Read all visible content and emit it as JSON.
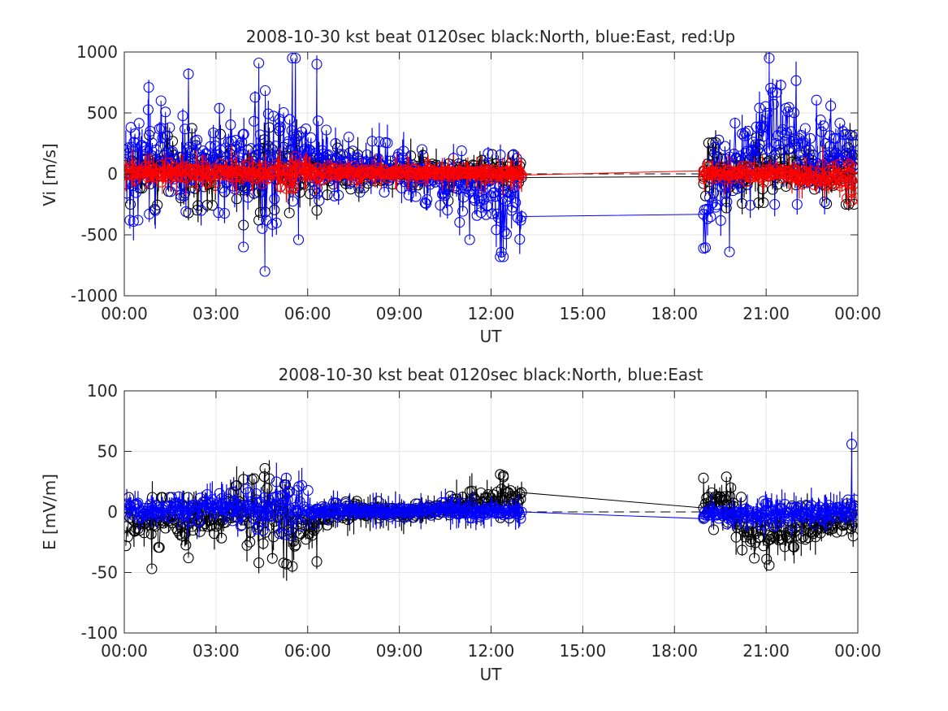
{
  "chart_data": [
    {
      "type": "line",
      "title": "2008-10-30 kst beat 0120sec black:North, blue:East, red:Up",
      "xlabel": "UT",
      "ylabel": "Vi [m/s]",
      "xlim": [
        0,
        24
      ],
      "ylim": [
        -1000,
        1000
      ],
      "grid": true,
      "xticks": [
        0,
        3,
        6,
        9,
        12,
        15,
        18,
        21,
        24
      ],
      "xtick_labels": [
        "00:00",
        "03:00",
        "06:00",
        "09:00",
        "12:00",
        "15:00",
        "18:00",
        "21:00",
        "00:00"
      ],
      "yticks": [
        -1000,
        -500,
        0,
        500,
        1000
      ],
      "ytick_labels": [
        "-1000",
        "-500",
        "0",
        "500",
        "1000"
      ],
      "zero_line": "dashed",
      "data_gap": [
        13.0,
        18.95
      ],
      "series": [
        {
          "color": "#000000",
          "marker": "circle",
          "envelope": [
            [
              0.5,
              -220,
              300
            ],
            [
              1.5,
              -280,
              360
            ],
            [
              2.5,
              -300,
              380
            ],
            [
              3.5,
              -250,
              340
            ],
            [
              4.5,
              -320,
              400
            ],
            [
              5.5,
              -260,
              320
            ],
            [
              6.5,
              -180,
              260
            ],
            [
              7.5,
              -120,
              160
            ],
            [
              8.5,
              -100,
              140
            ],
            [
              9.5,
              -90,
              150
            ],
            [
              10.5,
              -110,
              160
            ],
            [
              11.5,
              -120,
              170
            ],
            [
              12.5,
              -110,
              150
            ],
            [
              19.5,
              -250,
              260
            ],
            [
              20.5,
              -240,
              300
            ],
            [
              21.5,
              -230,
              280
            ],
            [
              22.5,
              -240,
              300
            ],
            [
              23.5,
              -250,
              320
            ]
          ],
          "x": [
            0.2,
            1.0,
            2.1,
            3.9,
            4.4,
            5.4,
            6.3,
            10.6,
            12.4,
            13.0,
            18.95,
            19.7,
            23.7
          ],
          "y": [
            -250,
            -290,
            -320,
            -420,
            -380,
            -320,
            -300,
            -220,
            -130,
            -30,
            -80,
            -280,
            -250
          ]
        },
        {
          "color": "#0000ff",
          "marker": "circle",
          "envelope": [
            [
              0.5,
              -380,
              550
            ],
            [
              1.0,
              -300,
              700
            ],
            [
              1.5,
              -320,
              600
            ],
            [
              2.5,
              -300,
              520
            ],
            [
              3.5,
              -330,
              550
            ],
            [
              4.5,
              -450,
              650
            ],
            [
              5.5,
              -350,
              950
            ],
            [
              6.5,
              -200,
              420
            ],
            [
              7.5,
              -150,
              280
            ],
            [
              8.5,
              -150,
              260
            ],
            [
              9.5,
              -180,
              200
            ],
            [
              10.5,
              -350,
              200
            ],
            [
              11.5,
              -450,
              180
            ],
            [
              12.5,
              -680,
              150
            ],
            [
              19.5,
              -600,
              420
            ],
            [
              20.5,
              -250,
              850
            ],
            [
              21.5,
              -250,
              900
            ],
            [
              22.5,
              -250,
              620
            ],
            [
              23.5,
              -200,
              520
            ]
          ],
          "x": [
            0.3,
            0.8,
            1.2,
            2.1,
            3.9,
            4.4,
            4.6,
            5.5,
            5.6,
            5.7,
            6.3,
            11.3,
            12.3,
            12.4,
            13.0,
            18.95,
            19.8,
            21.1
          ],
          "y": [
            -390,
            710,
            600,
            820,
            -600,
            910,
            -800,
            950,
            950,
            -540,
            900,
            -540,
            -680,
            -680,
            -350,
            -610,
            -640,
            950
          ]
        },
        {
          "color": "#ff0000",
          "marker": "circle",
          "envelope": [
            [
              0.5,
              -60,
              80
            ],
            [
              1.5,
              -70,
              90
            ],
            [
              2.5,
              -70,
              90
            ],
            [
              3.5,
              -70,
              80
            ],
            [
              4.5,
              -80,
              90
            ],
            [
              5.5,
              -120,
              140
            ],
            [
              6.5,
              -50,
              70
            ],
            [
              8.5,
              -40,
              60
            ],
            [
              10.5,
              -40,
              50
            ],
            [
              12.5,
              -40,
              50
            ],
            [
              19.5,
              -60,
              60
            ],
            [
              21.5,
              -70,
              70
            ],
            [
              23.5,
              -200,
              80
            ]
          ],
          "x": [
            5.3,
            5.6,
            13.0,
            18.95,
            23.8
          ],
          "y": [
            -120,
            140,
            -10,
            -40,
            -220
          ]
        }
      ]
    },
    {
      "type": "line",
      "title": "2008-10-30 kst beat 0120sec black:North, blue:East",
      "xlabel": "UT",
      "ylabel": "E [mV/m]",
      "xlim": [
        0,
        24
      ],
      "ylim": [
        -100,
        100
      ],
      "grid": true,
      "xticks": [
        0,
        3,
        6,
        9,
        12,
        15,
        18,
        21,
        24
      ],
      "xtick_labels": [
        "00:00",
        "03:00",
        "06:00",
        "09:00",
        "12:00",
        "15:00",
        "18:00",
        "21:00",
        "00:00"
      ],
      "yticks": [
        -100,
        -50,
        0,
        50,
        100
      ],
      "ytick_labels": [
        "-100",
        "-50",
        "0",
        "50",
        "100"
      ],
      "zero_line": "dashed",
      "data_gap": [
        13.0,
        18.95
      ],
      "series": [
        {
          "color": "#000000",
          "marker": "circle",
          "envelope": [
            [
              0.5,
              -28,
              12
            ],
            [
              1.5,
              -30,
              12
            ],
            [
              2.5,
              -25,
              12
            ],
            [
              3.5,
              -20,
              20
            ],
            [
              4.5,
              -35,
              30
            ],
            [
              5.5,
              -45,
              20
            ],
            [
              6.5,
              -18,
              10
            ],
            [
              7.5,
              -10,
              12
            ],
            [
              8.5,
              -8,
              8
            ],
            [
              9.5,
              -8,
              8
            ],
            [
              10.5,
              -6,
              12
            ],
            [
              11.5,
              -4,
              18
            ],
            [
              12.5,
              -5,
              30
            ],
            [
              19.5,
              -15,
              28
            ],
            [
              20.5,
              -38,
              5
            ],
            [
              21.5,
              -40,
              5
            ],
            [
              22.5,
              -30,
              5
            ],
            [
              23.5,
              -20,
              5
            ]
          ],
          "x": [
            0.9,
            2.1,
            3.9,
            4.4,
            4.6,
            5.5,
            6.3,
            12.3,
            12.4,
            13.0,
            18.95,
            19.7,
            21.1
          ],
          "y": [
            -47,
            -38,
            27,
            -42,
            36,
            -45,
            -41,
            31,
            30,
            16,
            28,
            29,
            -44
          ]
        },
        {
          "color": "#0000ff",
          "marker": "circle",
          "envelope": [
            [
              0.5,
              -8,
              10
            ],
            [
              1.5,
              -8,
              12
            ],
            [
              2.5,
              -8,
              14
            ],
            [
              3.5,
              -10,
              16
            ],
            [
              4.5,
              -15,
              22
            ],
            [
              5.5,
              -20,
              28
            ],
            [
              6.5,
              -6,
              8
            ],
            [
              8.5,
              -4,
              5
            ],
            [
              10.5,
              -5,
              8
            ],
            [
              12.5,
              -5,
              5
            ],
            [
              19.5,
              -10,
              6
            ],
            [
              20.5,
              -10,
              8
            ],
            [
              21.5,
              -12,
              10
            ],
            [
              22.5,
              -10,
              10
            ],
            [
              23.5,
              -8,
              10
            ]
          ],
          "x": [
            5.3,
            13.0,
            18.95,
            23.8
          ],
          "y": [
            28,
            0,
            -4,
            56
          ]
        }
      ]
    }
  ]
}
